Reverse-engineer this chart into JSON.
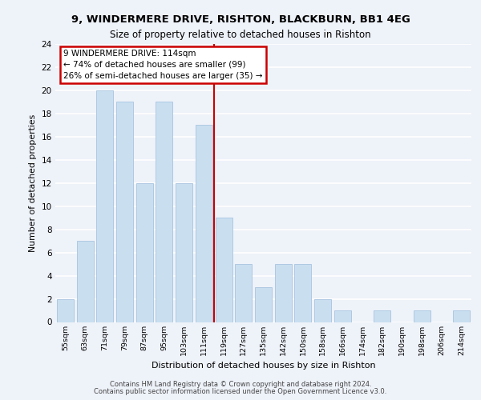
{
  "title1": "9, WINDERMERE DRIVE, RISHTON, BLACKBURN, BB1 4EG",
  "title2": "Size of property relative to detached houses in Rishton",
  "xlabel": "Distribution of detached houses by size in Rishton",
  "ylabel": "Number of detached properties",
  "categories": [
    "55sqm",
    "63sqm",
    "71sqm",
    "79sqm",
    "87sqm",
    "95sqm",
    "103sqm",
    "111sqm",
    "119sqm",
    "127sqm",
    "135sqm",
    "142sqm",
    "150sqm",
    "158sqm",
    "166sqm",
    "174sqm",
    "182sqm",
    "190sqm",
    "198sqm",
    "206sqm",
    "214sqm"
  ],
  "values": [
    2,
    7,
    20,
    19,
    12,
    19,
    12,
    17,
    9,
    5,
    3,
    5,
    5,
    2,
    1,
    0,
    1,
    0,
    1,
    0,
    1
  ],
  "bar_color": "#c9dff0",
  "bar_edgecolor": "#a8c4e0",
  "vline_x_index": 7.5,
  "annotation_text": "9 WINDERMERE DRIVE: 114sqm\n← 74% of detached houses are smaller (99)\n26% of semi-detached houses are larger (35) →",
  "annotation_box_color": "#ffffff",
  "annotation_box_edgecolor": "#cc0000",
  "vline_color": "#cc0000",
  "background_color": "#eef2f9",
  "grid_color": "#ffffff",
  "ylim": [
    0,
    24
  ],
  "yticks": [
    0,
    2,
    4,
    6,
    8,
    10,
    12,
    14,
    16,
    18,
    20,
    22,
    24
  ],
  "footer_line1": "Contains HM Land Registry data © Crown copyright and database right 2024.",
  "footer_line2": "Contains public sector information licensed under the Open Government Licence v3.0."
}
